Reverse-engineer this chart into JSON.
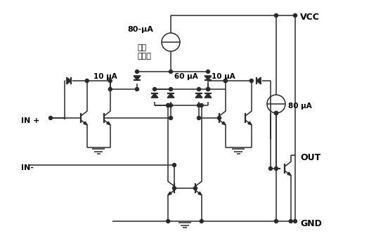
{
  "bg_color": "#ffffff",
  "line_color": "#2a2a2a",
  "labels": {
    "VCC": "VCC",
    "GND": "GND",
    "OUT": "OUT",
    "INp": "IN +",
    "INn": "IN-",
    "uA80_top": "80-μA",
    "current_reg": "当前\n调节器",
    "uA60": "60 μA",
    "uA10_left": "10 μA",
    "uA10_right": "10 μA",
    "uA80_right": "80 μA"
  },
  "figsize": [
    5.35,
    3.46
  ],
  "dpi": 100
}
